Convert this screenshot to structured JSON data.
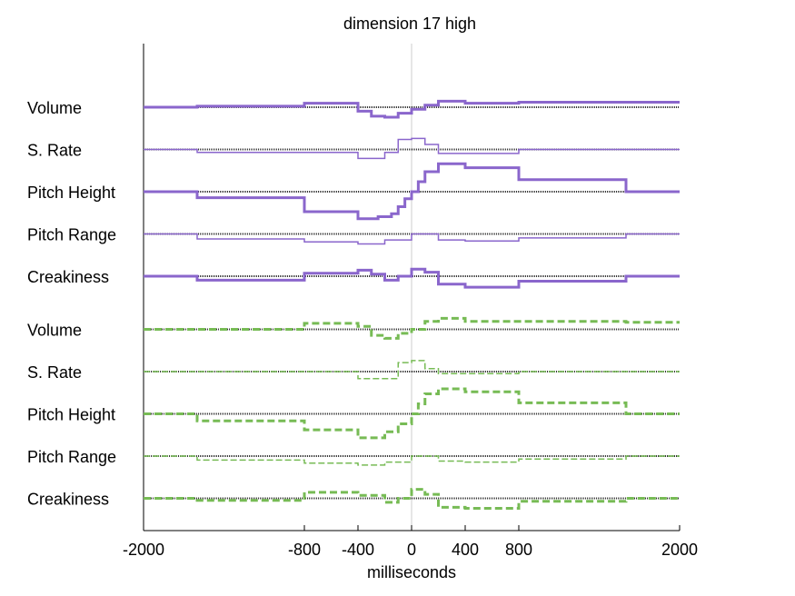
{
  "chart_data": {
    "type": "line",
    "title": "dimension 17 high",
    "xlabel": "milliseconds",
    "ylabel": "",
    "xlim": [
      -2000,
      2000
    ],
    "xticks": [
      -2000,
      -800,
      -400,
      0,
      400,
      800,
      2000
    ],
    "grid": false,
    "legend": "none",
    "colors": {
      "purple": "#8a66cc",
      "green": "#77bb55",
      "baseline": "#333333",
      "zero_line": "#cccccc"
    },
    "groups": [
      {
        "color": "purple",
        "style": "solid",
        "series": [
          {
            "name": "Volume",
            "weight": "thick",
            "x": [
              -2000,
              -1600,
              -800,
              -400,
              -300,
              -200,
              -100,
              0,
              100,
              200,
              400,
              800,
              1600,
              2000
            ],
            "values": [
              0,
              0.05,
              0.2,
              -0.2,
              -0.45,
              -0.5,
              -0.3,
              -0.1,
              0.1,
              0.3,
              0.2,
              0.25,
              0.25,
              0.15
            ]
          },
          {
            "name": "S. Rate",
            "weight": "thin",
            "x": [
              -2000,
              -1600,
              -400,
              -200,
              -100,
              0,
              100,
              200,
              800,
              1600,
              2000
            ],
            "values": [
              0,
              -0.15,
              -0.45,
              -0.15,
              0.5,
              0.55,
              0.25,
              -0.2,
              0,
              0,
              0
            ]
          },
          {
            "name": "Pitch Height",
            "weight": "thick",
            "x": [
              -2000,
              -1600,
              -800,
              -400,
              -250,
              -150,
              -100,
              -50,
              0,
              50,
              100,
              200,
              400,
              800,
              1600,
              2000
            ],
            "values": [
              0,
              -0.3,
              -1.0,
              -1.35,
              -1.25,
              -1.1,
              -0.75,
              -0.35,
              0,
              0.5,
              1.0,
              1.4,
              1.2,
              0.6,
              0,
              0
            ]
          },
          {
            "name": "Pitch Range",
            "weight": "thin",
            "x": [
              -2000,
              -1600,
              -800,
              -400,
              -200,
              0,
              200,
              400,
              800,
              1600,
              2000
            ],
            "values": [
              0,
              -0.25,
              -0.4,
              -0.5,
              -0.3,
              0,
              -0.3,
              -0.35,
              -0.2,
              0,
              0
            ]
          },
          {
            "name": "Creakiness",
            "weight": "thick",
            "x": [
              -2000,
              -1600,
              -800,
              -400,
              -300,
              -200,
              -100,
              0,
              100,
              200,
              400,
              800,
              1600,
              2000
            ],
            "values": [
              0,
              -0.2,
              0.15,
              0.3,
              0.1,
              -0.2,
              0,
              0.35,
              0.2,
              -0.4,
              -0.55,
              -0.25,
              0,
              0
            ]
          }
        ]
      },
      {
        "color": "green",
        "style": "dashed",
        "series": [
          {
            "name": "Volume",
            "weight": "thick",
            "x": [
              -2000,
              -800,
              -400,
              -300,
              -200,
              -100,
              0,
              100,
              200,
              400,
              800,
              1600,
              2000
            ],
            "values": [
              0,
              0.3,
              0.15,
              -0.3,
              -0.45,
              -0.2,
              0,
              0.4,
              0.55,
              0.4,
              0.4,
              0.35,
              0.2
            ]
          },
          {
            "name": "S. Rate",
            "weight": "thin",
            "x": [
              -2000,
              -400,
              -100,
              0,
              100,
              200,
              800,
              1600,
              2000
            ],
            "values": [
              0,
              -0.35,
              0.45,
              0.55,
              0.15,
              -0.1,
              0,
              0,
              0
            ]
          },
          {
            "name": "Pitch Height",
            "weight": "thick",
            "x": [
              -2000,
              -1600,
              -800,
              -400,
              -200,
              -100,
              0,
              50,
              100,
              200,
              400,
              800,
              1600,
              2000
            ],
            "values": [
              0,
              -0.35,
              -0.8,
              -1.2,
              -0.9,
              -0.5,
              0,
              0.5,
              1.0,
              1.25,
              1.1,
              0.55,
              0,
              0
            ]
          },
          {
            "name": "Pitch Range",
            "weight": "thin",
            "x": [
              -2000,
              -1600,
              -800,
              -400,
              -200,
              0,
              200,
              400,
              800,
              1600,
              2000
            ],
            "values": [
              0,
              -0.2,
              -0.35,
              -0.45,
              -0.3,
              0,
              -0.25,
              -0.3,
              -0.15,
              0,
              0
            ]
          },
          {
            "name": "Creakiness",
            "weight": "thick",
            "x": [
              -2000,
              -1600,
              -800,
              -400,
              -200,
              -100,
              0,
              100,
              200,
              400,
              800,
              1600,
              2000
            ],
            "values": [
              0,
              -0.1,
              0.3,
              0.15,
              -0.2,
              0,
              0.45,
              0.2,
              -0.45,
              -0.5,
              -0.15,
              0,
              0
            ]
          }
        ]
      }
    ]
  }
}
